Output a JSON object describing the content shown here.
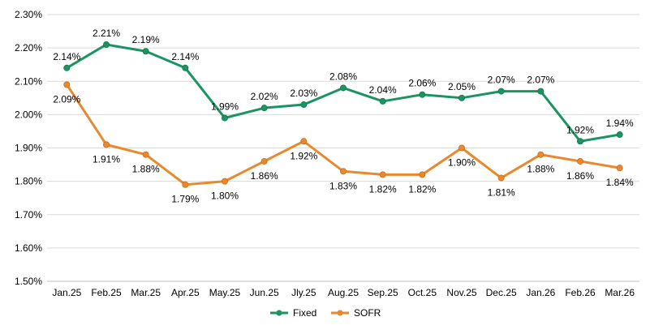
{
  "chart_data": {
    "type": "line",
    "title": "",
    "xlabel": "",
    "ylabel": "",
    "categories": [
      "Jan.25",
      "Feb.25",
      "Mar.25",
      "Apr.25",
      "May.25",
      "Jun.25",
      "Jly.25",
      "Aug.25",
      "Sep.25",
      "Oct.25",
      "Nov.25",
      "Dec.25",
      "Jan.26",
      "Feb.26",
      "Mar.26"
    ],
    "y_ticks": [
      "1.50%",
      "1.60%",
      "1.70%",
      "1.80%",
      "1.90%",
      "2.00%",
      "2.10%",
      "2.20%",
      "2.30%"
    ],
    "ylim": [
      1.5,
      2.3
    ],
    "grid": true,
    "legend_position": "bottom",
    "series": [
      {
        "name": "Fixed",
        "color": "#1a9460",
        "values": [
          2.14,
          2.21,
          2.19,
          2.14,
          1.99,
          2.02,
          2.03,
          2.08,
          2.04,
          2.06,
          2.05,
          2.07,
          2.07,
          1.92,
          1.94
        ],
        "labels": [
          "2.14%",
          "2.21%",
          "2.19%",
          "2.14%",
          "1.99%",
          "2.02%",
          "2.03%",
          "2.08%",
          "2.04%",
          "2.06%",
          "2.05%",
          "2.07%",
          "2.07%",
          "1.92%",
          "1.94%"
        ]
      },
      {
        "name": "SOFR",
        "color": "#e8892e",
        "values": [
          2.09,
          1.91,
          1.88,
          1.79,
          1.8,
          1.86,
          1.92,
          1.83,
          1.82,
          1.82,
          1.9,
          1.81,
          1.88,
          1.86,
          1.84
        ],
        "labels": [
          "2.09%",
          "1.91%",
          "1.88%",
          "1.79%",
          "1.80%",
          "1.86%",
          "1.92%",
          "1.83%",
          "1.82%",
          "1.82%",
          "1.90%",
          "1.81%",
          "1.88%",
          "1.86%",
          "1.84%"
        ]
      }
    ]
  }
}
